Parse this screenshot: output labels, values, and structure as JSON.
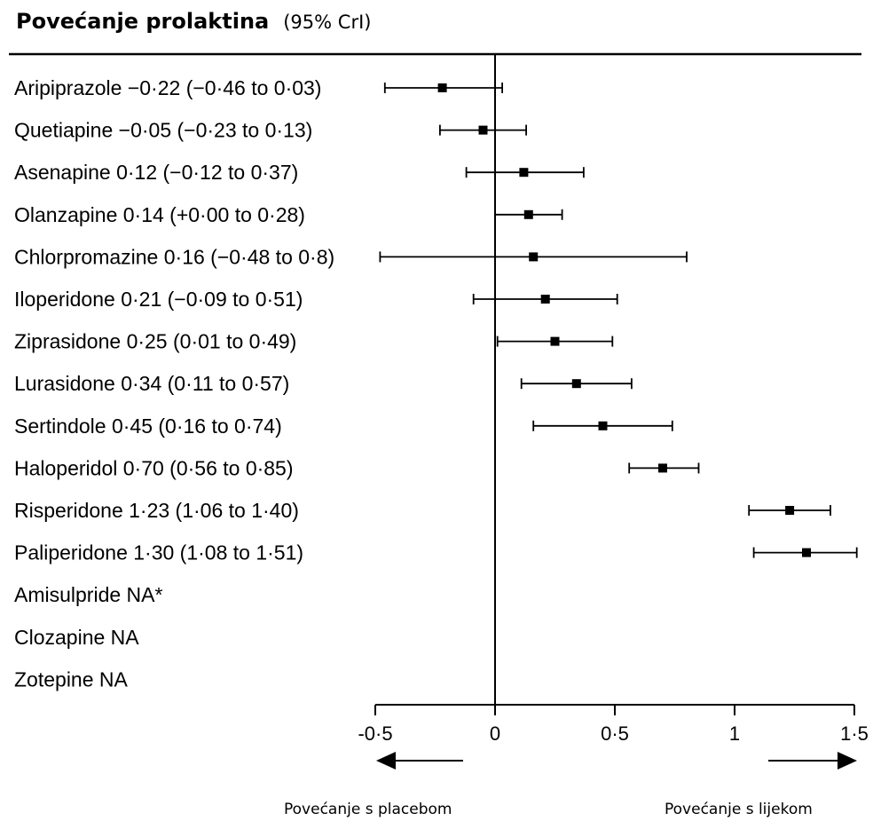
{
  "title": "Povećanje prolaktina",
  "title_ci": "(95% CrI)",
  "direction_labels": {
    "left": "Povećanje s placebom",
    "right": "Povećanje s lijekom"
  },
  "chart_data": {
    "type": "forest",
    "title": "Povećanje prolaktina",
    "subtitle": "(95% CrI)",
    "xlim": [
      -0.5,
      1.5
    ],
    "x_ticks": [
      -0.5,
      0,
      0.5,
      1,
      1.5
    ],
    "x_tick_labels": [
      "-0·5",
      "0",
      "0·5",
      "1",
      "1·5"
    ],
    "reference_line": 0,
    "rows": [
      {
        "label": "Aripiprazole −0·22 (−0·46 to 0·03)",
        "estimate": -0.22,
        "lower": -0.46,
        "upper": 0.03
      },
      {
        "label": "Quetiapine −0·05 (−0·23 to 0·13)",
        "estimate": -0.05,
        "lower": -0.23,
        "upper": 0.13
      },
      {
        "label": "Asenapine 0·12 (−0·12 to 0·37)",
        "estimate": 0.12,
        "lower": -0.12,
        "upper": 0.37
      },
      {
        "label": "Olanzapine 0·14 (+0·00 to 0·28)",
        "estimate": 0.14,
        "lower": 0.0,
        "upper": 0.28
      },
      {
        "label": "Chlorpromazine 0·16 (−0·48 to 0·8)",
        "estimate": 0.16,
        "lower": -0.48,
        "upper": 0.8
      },
      {
        "label": "Iloperidone 0·21 (−0·09 to 0·51)",
        "estimate": 0.21,
        "lower": -0.09,
        "upper": 0.51
      },
      {
        "label": "Ziprasidone 0·25 (0·01 to 0·49)",
        "estimate": 0.25,
        "lower": 0.01,
        "upper": 0.49
      },
      {
        "label": "Lurasidone 0·34 (0·11 to 0·57)",
        "estimate": 0.34,
        "lower": 0.11,
        "upper": 0.57
      },
      {
        "label": "Sertindole 0·45 (0·16 to 0·74)",
        "estimate": 0.45,
        "lower": 0.16,
        "upper": 0.74
      },
      {
        "label": "Haloperidol 0·70 (0·56 to 0·85)",
        "estimate": 0.7,
        "lower": 0.56,
        "upper": 0.85
      },
      {
        "label": "Risperidone 1·23 (1·06 to 1·40)",
        "estimate": 1.23,
        "lower": 1.06,
        "upper": 1.4
      },
      {
        "label": "Paliperidone 1·30 (1·08 to 1·51)",
        "estimate": 1.3,
        "lower": 1.08,
        "upper": 1.51
      },
      {
        "label": "Amisulpride NA*",
        "estimate": null,
        "lower": null,
        "upper": null
      },
      {
        "label": "Clozapine NA",
        "estimate": null,
        "lower": null,
        "upper": null
      },
      {
        "label": "Zotepine NA",
        "estimate": null,
        "lower": null,
        "upper": null
      }
    ]
  }
}
